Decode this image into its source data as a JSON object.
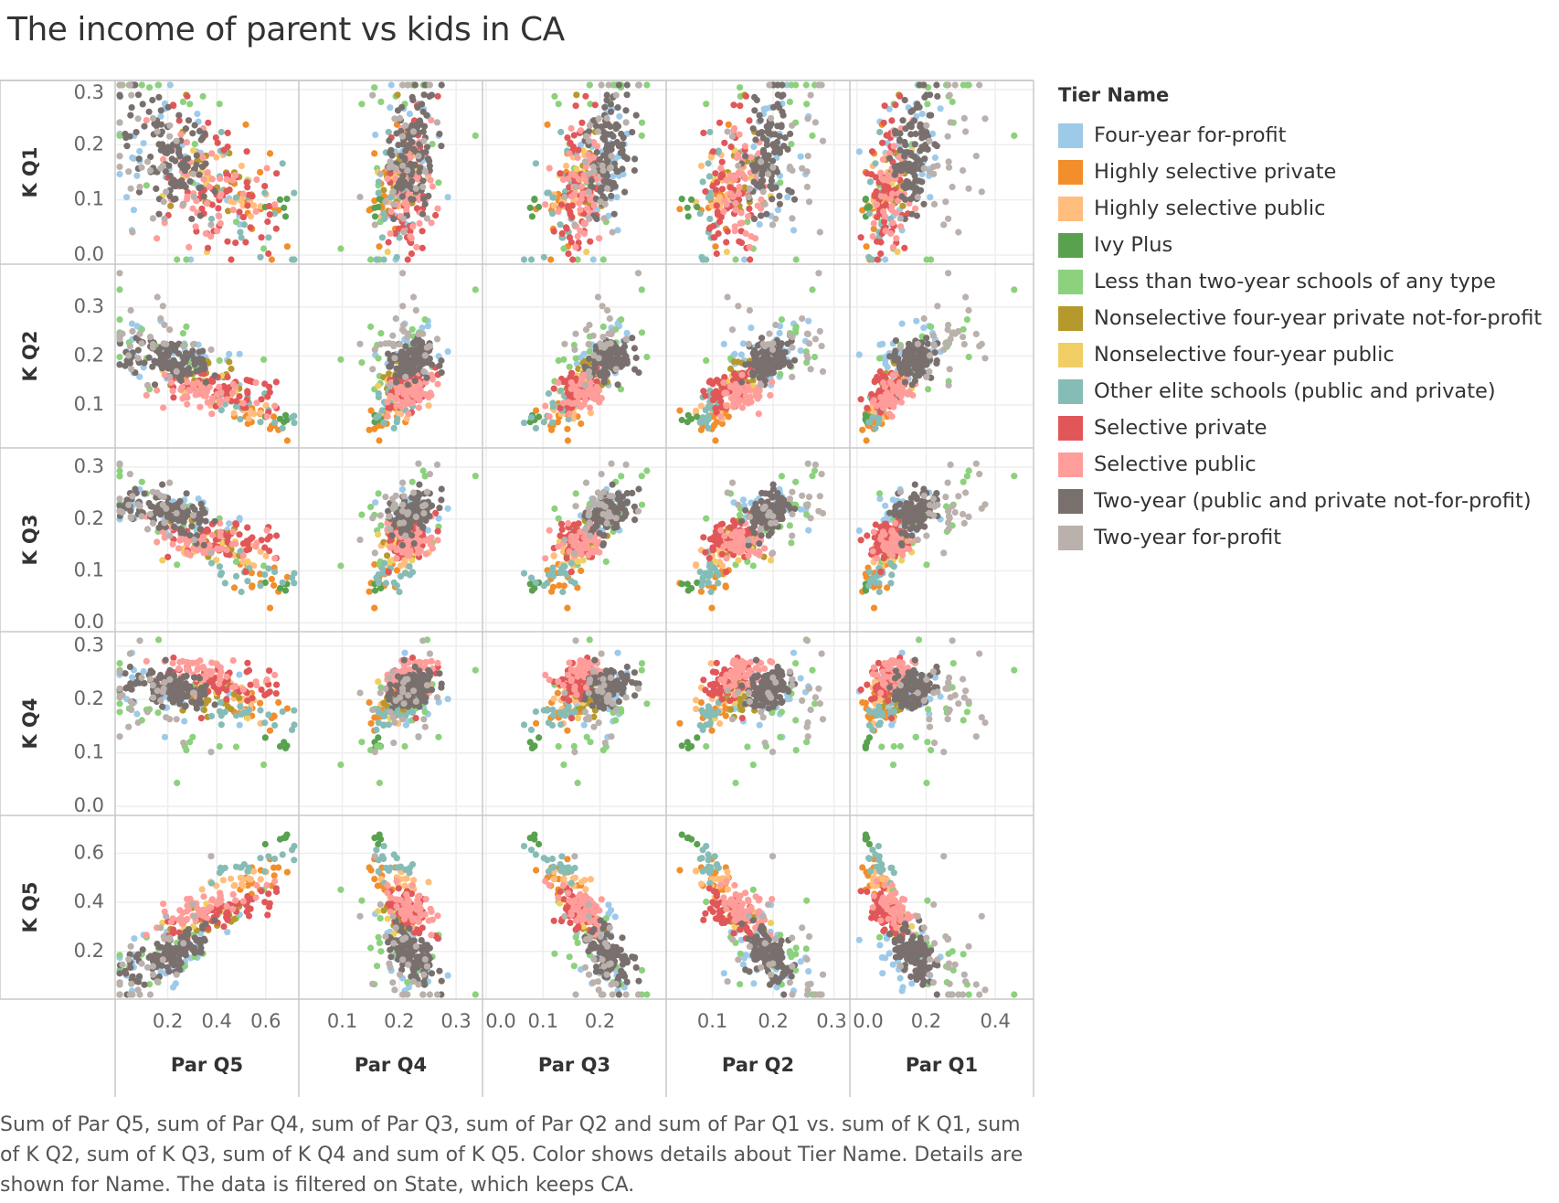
{
  "title": "The income of parent vs kids in CA",
  "legend": {
    "title": "Tier Name",
    "items": [
      {
        "label": "Four-year for-profit",
        "color": "#9ecae9"
      },
      {
        "label": "Highly selective private",
        "color": "#f28e2b"
      },
      {
        "label": "Highly selective public",
        "color": "#ffbe7d"
      },
      {
        "label": "Ivy Plus",
        "color": "#59a14f"
      },
      {
        "label": "Less than two-year schools of any type",
        "color": "#8cd17d"
      },
      {
        "label": "Nonselective four-year private not-for-profit",
        "color": "#b6992d"
      },
      {
        "label": "Nonselective four-year public",
        "color": "#f1ce63"
      },
      {
        "label": "Other elite schools (public and private)",
        "color": "#86bcb6"
      },
      {
        "label": "Selective private",
        "color": "#e15759"
      },
      {
        "label": "Selective public",
        "color": "#ff9d9a"
      },
      {
        "label": "Two-year (public and private not-for-profit)",
        "color": "#79706e"
      },
      {
        "label": "Two-year for-profit",
        "color": "#bab0ac"
      }
    ]
  },
  "caption": "Sum of Par Q5, sum of Par Q4, sum of Par Q3, sum of Par Q2 and sum of Par Q1 vs. sum of K Q1, sum of K Q2, sum of K Q3, sum of K Q4 and sum of K Q5.  Color shows details about Tier Name.  Details are shown for Name. The data is filtered on State, which keeps CA.",
  "chart_data": {
    "type": "scatter",
    "layout": "scatterplot-matrix",
    "columns": [
      {
        "label": "Par Q5",
        "ticks": [
          "0.2",
          "0.4",
          "0.6"
        ],
        "tick_values": [
          0.2,
          0.4,
          0.6
        ],
        "range": [
          0.0,
          0.72
        ]
      },
      {
        "label": "Par Q4",
        "ticks": [
          "0.1",
          "0.2",
          "0.3"
        ],
        "tick_values": [
          0.1,
          0.2,
          0.3
        ],
        "range": [
          0.03,
          0.34
        ]
      },
      {
        "label": "Par Q3",
        "ticks": [
          "0.0",
          "0.1",
          "0.2"
        ],
        "tick_values": [
          0.0,
          0.1,
          0.2
        ],
        "range": [
          0.0,
          0.31
        ]
      },
      {
        "label": "Par Q2",
        "ticks": [
          "0.1",
          "0.2",
          "0.3"
        ],
        "tick_values": [
          0.1,
          0.2,
          0.3
        ],
        "range": [
          0.03,
          0.32
        ]
      },
      {
        "label": "Par Q1",
        "ticks": [
          "0.0",
          "0.2",
          "0.4"
        ],
        "tick_values": [
          0.0,
          0.2,
          0.4
        ],
        "range": [
          -0.01,
          0.5
        ]
      }
    ],
    "rows": [
      {
        "label": "K Q1",
        "ticks": [
          "0.0",
          "0.1",
          "0.2",
          "0.3"
        ],
        "tick_values": [
          0.0,
          0.1,
          0.2,
          0.3
        ],
        "range": [
          -0.01,
          0.31
        ]
      },
      {
        "label": "K Q2",
        "ticks": [
          "0.1",
          "0.2",
          "0.3"
        ],
        "tick_values": [
          0.1,
          0.2,
          0.3
        ],
        "range": [
          0.02,
          0.38
        ]
      },
      {
        "label": "K Q3",
        "ticks": [
          "0.0",
          "0.1",
          "0.2",
          "0.3"
        ],
        "tick_values": [
          0.0,
          0.1,
          0.2,
          0.3
        ],
        "range": [
          -0.01,
          0.33
        ]
      },
      {
        "label": "K Q4",
        "ticks": [
          "0.0",
          "0.1",
          "0.2",
          "0.3"
        ],
        "tick_values": [
          0.0,
          0.1,
          0.2,
          0.3
        ],
        "range": [
          -0.01,
          0.32
        ]
      },
      {
        "label": "K Q5",
        "ticks": [
          "0.2",
          "0.4",
          "0.6"
        ],
        "tick_values": [
          0.2,
          0.4,
          0.6
        ],
        "range": [
          0.02,
          0.74
        ]
      }
    ],
    "series": [
      {
        "name": "Four-year for-profit",
        "color": "#9ecae9",
        "n": 40,
        "par": [
          0.2,
          0.22,
          0.21,
          0.19,
          0.14
        ],
        "k": [
          0.17,
          0.2,
          0.22,
          0.22,
          0.19
        ],
        "spread": [
          0.13,
          0.04,
          0.04,
          0.05,
          0.09
        ]
      },
      {
        "name": "Highly selective private",
        "color": "#f28e2b",
        "n": 16,
        "par": [
          0.56,
          0.17,
          0.13,
          0.1,
          0.05
        ],
        "k": [
          0.1,
          0.08,
          0.1,
          0.18,
          0.5
        ],
        "spread": [
          0.08,
          0.03,
          0.03,
          0.03,
          0.04
        ]
      },
      {
        "name": "Highly selective public",
        "color": "#ffbe7d",
        "n": 16,
        "par": [
          0.5,
          0.2,
          0.15,
          0.1,
          0.06
        ],
        "k": [
          0.11,
          0.1,
          0.12,
          0.2,
          0.5
        ],
        "spread": [
          0.07,
          0.03,
          0.03,
          0.03,
          0.03
        ]
      },
      {
        "name": "Ivy Plus",
        "color": "#59a14f",
        "n": 5,
        "par": [
          0.66,
          0.16,
          0.08,
          0.06,
          0.03
        ],
        "k": [
          0.08,
          0.07,
          0.07,
          0.12,
          0.66
        ],
        "spread": [
          0.02,
          0.01,
          0.01,
          0.01,
          0.01
        ]
      },
      {
        "name": "Less than two-year schools of any type",
        "color": "#8cd17d",
        "n": 22,
        "par": [
          0.18,
          0.2,
          0.2,
          0.2,
          0.21
        ],
        "k": [
          0.2,
          0.22,
          0.21,
          0.17,
          0.2
        ],
        "spread": [
          0.15,
          0.07,
          0.06,
          0.07,
          0.12
        ]
      },
      {
        "name": "Nonselective four-year private not-for-profit",
        "color": "#b6992d",
        "n": 20,
        "par": [
          0.35,
          0.2,
          0.18,
          0.15,
          0.12
        ],
        "k": [
          0.16,
          0.16,
          0.16,
          0.2,
          0.32
        ],
        "spread": [
          0.1,
          0.03,
          0.03,
          0.03,
          0.04
        ]
      },
      {
        "name": "Nonselective four-year public",
        "color": "#f1ce63",
        "n": 12,
        "par": [
          0.38,
          0.2,
          0.16,
          0.14,
          0.1
        ],
        "k": [
          0.13,
          0.13,
          0.15,
          0.22,
          0.37
        ],
        "spread": [
          0.08,
          0.03,
          0.03,
          0.03,
          0.04
        ]
      },
      {
        "name": "Other elite schools (public and private)",
        "color": "#86bcb6",
        "n": 20,
        "par": [
          0.55,
          0.18,
          0.12,
          0.09,
          0.06
        ],
        "k": [
          0.09,
          0.09,
          0.09,
          0.17,
          0.55
        ],
        "spread": [
          0.1,
          0.03,
          0.03,
          0.02,
          0.03
        ]
      },
      {
        "name": "Selective private",
        "color": "#e15759",
        "n": 58,
        "par": [
          0.42,
          0.22,
          0.16,
          0.13,
          0.09
        ],
        "k": [
          0.13,
          0.13,
          0.16,
          0.23,
          0.36
        ],
        "spread": [
          0.1,
          0.03,
          0.03,
          0.03,
          0.04
        ]
      },
      {
        "name": "Selective public",
        "color": "#ff9d9a",
        "n": 52,
        "par": [
          0.35,
          0.22,
          0.17,
          0.15,
          0.1
        ],
        "k": [
          0.12,
          0.12,
          0.15,
          0.25,
          0.38
        ],
        "spread": [
          0.1,
          0.03,
          0.03,
          0.03,
          0.04
        ]
      },
      {
        "name": "Two-year (public and private not-for-profit)",
        "color": "#79706e",
        "n": 110,
        "par": [
          0.22,
          0.22,
          0.21,
          0.19,
          0.16
        ],
        "k": [
          0.18,
          0.19,
          0.21,
          0.22,
          0.2
        ],
        "spread": [
          0.08,
          0.03,
          0.03,
          0.03,
          0.05
        ]
      },
      {
        "name": "Two-year for-profit",
        "color": "#bab0ac",
        "n": 30,
        "par": [
          0.15,
          0.2,
          0.19,
          0.2,
          0.24
        ],
        "k": [
          0.18,
          0.22,
          0.22,
          0.2,
          0.17
        ],
        "spread": [
          0.12,
          0.06,
          0.05,
          0.06,
          0.12
        ]
      }
    ],
    "grid": true,
    "legend_position": "right"
  }
}
